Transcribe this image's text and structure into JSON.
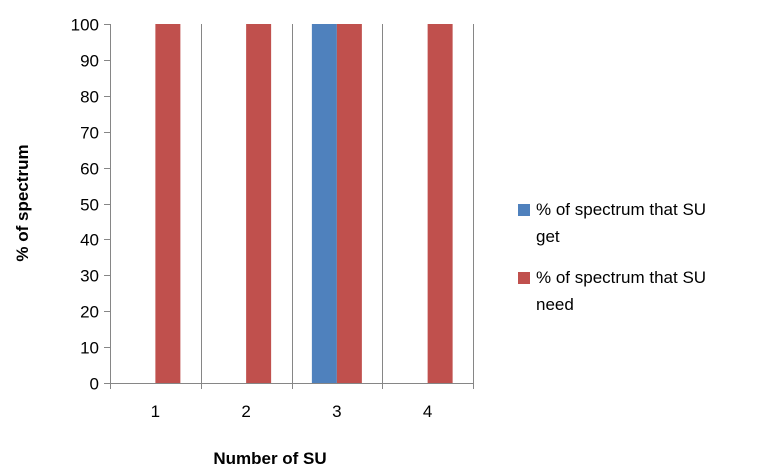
{
  "chart_data": {
    "type": "bar",
    "title": "",
    "xlabel": "Number of SU",
    "ylabel": "% of spectrum",
    "categories": [
      "1",
      "2",
      "3",
      "4"
    ],
    "ylim": [
      0,
      100
    ],
    "yticks": [
      0,
      10,
      20,
      30,
      40,
      50,
      60,
      70,
      80,
      90,
      100
    ],
    "grid": "vertical category gridlines",
    "legend_position": "right",
    "series": [
      {
        "name": "% of spectrum that SU get",
        "name_lines": [
          "% of spectrum that SU",
          "get"
        ],
        "color": "#4F81BD",
        "values": [
          0,
          0,
          100,
          0
        ]
      },
      {
        "name": "% of spectrum that SU need",
        "name_lines": [
          "% of spectrum that SU",
          "need"
        ],
        "color": "#C0504D",
        "values": [
          100,
          100,
          100,
          100
        ]
      }
    ]
  }
}
